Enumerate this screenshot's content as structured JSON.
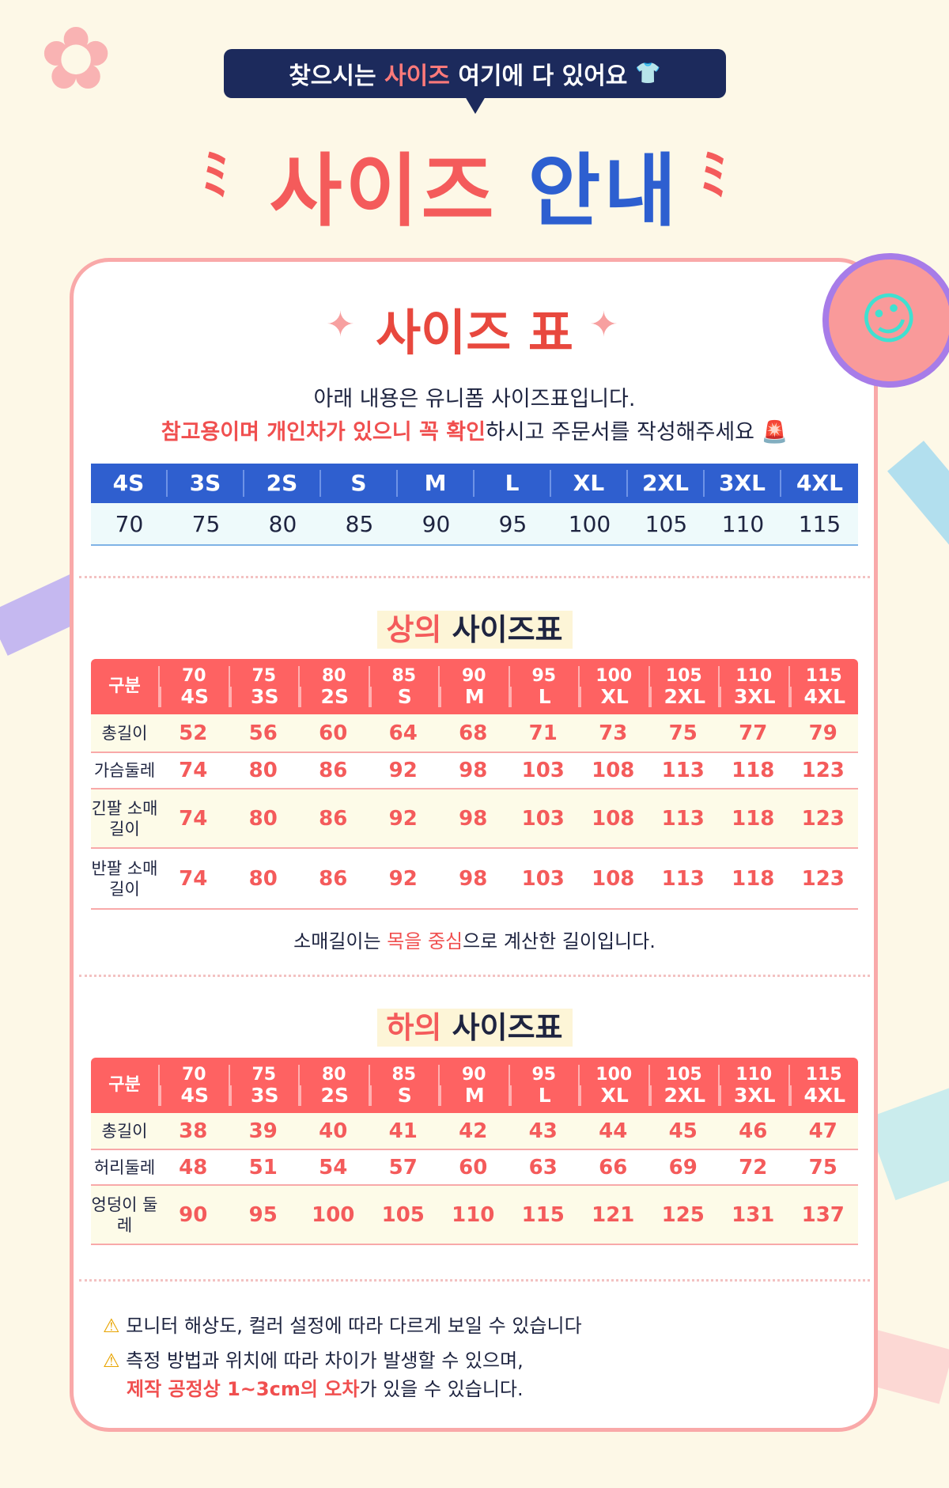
{
  "header": {
    "bubble_pre": "찾으시는 ",
    "bubble_hl": "사이즈",
    "bubble_post": " 여기에 다 있어요",
    "title_a": "사이즈",
    "title_b": "안내"
  },
  "card": {
    "title": "사이즈 표",
    "line1": "아래 내용은 유니폼 사이즈표입니다.",
    "line2_red": "참고용이며 개인차가 있으니 꼭 확인",
    "line2_post": "하시고 주문서를 작성해주세요"
  },
  "size_map": {
    "labels": [
      "4S",
      "3S",
      "2S",
      "S",
      "M",
      "L",
      "XL",
      "2XL",
      "3XL",
      "4XL"
    ],
    "values": [
      "70",
      "75",
      "80",
      "85",
      "90",
      "95",
      "100",
      "105",
      "110",
      "115"
    ]
  },
  "top": {
    "title_a": "상의",
    "title_b": " 사이즈표",
    "head": "구분",
    "rows": [
      {
        "label": "총길이",
        "values": [
          "52",
          "56",
          "60",
          "64",
          "68",
          "71",
          "73",
          "75",
          "77",
          "79"
        ]
      },
      {
        "label": "가슴둘레",
        "values": [
          "74",
          "80",
          "86",
          "92",
          "98",
          "103",
          "108",
          "113",
          "118",
          "123"
        ]
      },
      {
        "label": "긴팔 소매길이",
        "values": [
          "74",
          "80",
          "86",
          "92",
          "98",
          "103",
          "108",
          "113",
          "118",
          "123"
        ]
      },
      {
        "label": "반팔 소매길이",
        "values": [
          "74",
          "80",
          "86",
          "92",
          "98",
          "103",
          "108",
          "113",
          "118",
          "123"
        ]
      }
    ],
    "note_pre": "소매길이는 ",
    "note_red": "목을 중심",
    "note_post": "으로 계산한 길이입니다."
  },
  "bottom": {
    "title_a": "하의",
    "title_b": " 사이즈표",
    "head": "구분",
    "rows": [
      {
        "label": "총길이",
        "values": [
          "38",
          "39",
          "40",
          "41",
          "42",
          "43",
          "44",
          "45",
          "46",
          "47"
        ]
      },
      {
        "label": "허리둘레",
        "values": [
          "48",
          "51",
          "54",
          "57",
          "60",
          "63",
          "66",
          "69",
          "72",
          "75"
        ]
      },
      {
        "label": "엉덩이 둘레",
        "values": [
          "90",
          "95",
          "100",
          "105",
          "110",
          "115",
          "121",
          "125",
          "131",
          "137"
        ]
      }
    ]
  },
  "warnings": {
    "w1": "모니터 해상도, 컬러 설정에 따라 다르게 보일 수 있습니다",
    "w2": "측정 방법과 위치에 따라 차이가 발생할 수 있으며,",
    "w3_red": "제작 공정상 1~3cm의 오차",
    "w3_post": "가 있을 수 있습니다."
  },
  "colors": {
    "pink": "#f45b5b",
    "blue": "#2f5fcf",
    "navy": "#1c2a5c"
  }
}
